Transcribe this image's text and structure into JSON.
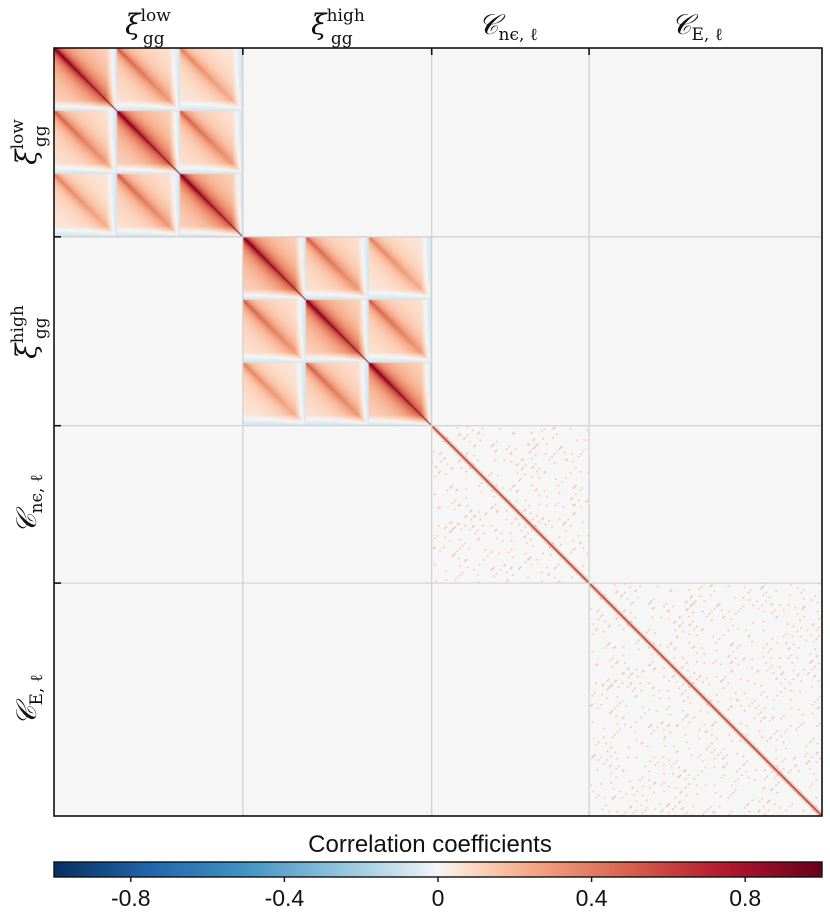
{
  "chart_data": {
    "type": "heatmap",
    "blocks": [
      {
        "symbol": "ξ",
        "superscript": "low",
        "subscript": "gg",
        "n": 150,
        "sub_blocks": 3
      },
      {
        "symbol": "ξ",
        "superscript": "high",
        "subscript": "gg",
        "n": 150,
        "sub_blocks": 3
      },
      {
        "symbol": "𝒞",
        "superscript": "",
        "subscript": "nϵ, ℓ",
        "n": 125,
        "sub_blocks": 0
      },
      {
        "symbol": "𝒞",
        "superscript": "",
        "subscript": "E, ℓ",
        "n": 185,
        "sub_blocks": 0
      }
    ],
    "xi_sub_block_correlation": {
      "diagonal_block": 1.0,
      "off_diagonal_block": 0.55,
      "decay_scale": 0.08,
      "far_value": -0.1
    },
    "cl_off_diagonal_max": 0.35,
    "colorbar": {
      "title": "Correlation coefficients",
      "range": [
        -1,
        1
      ],
      "ticks": [
        -0.8,
        -0.4,
        0,
        0.4,
        0.8
      ],
      "tick_labels": [
        "-0.8",
        "-0.4",
        "0",
        "0.4",
        "0.8"
      ],
      "colormap": "RdBu_r"
    }
  }
}
